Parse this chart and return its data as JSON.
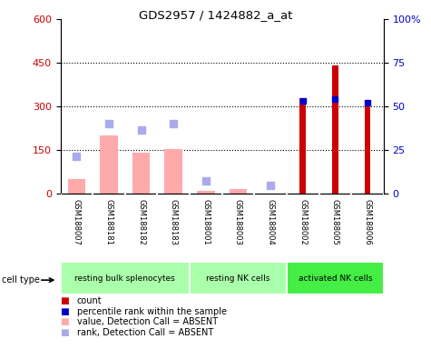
{
  "title": "GDS2957 / 1424882_a_at",
  "samples": [
    "GSM188007",
    "GSM188181",
    "GSM188182",
    "GSM188183",
    "GSM188001",
    "GSM188003",
    "GSM188004",
    "GSM188002",
    "GSM188005",
    "GSM188006"
  ],
  "cell_types": [
    {
      "label": "resting bulk splenocytes",
      "start": 0,
      "end": 4,
      "color": "#aaffaa"
    },
    {
      "label": "resting NK cells",
      "start": 4,
      "end": 7,
      "color": "#aaffaa"
    },
    {
      "label": "activated NK cells",
      "start": 7,
      "end": 10,
      "color": "#44ee44"
    }
  ],
  "count_values": [
    0,
    0,
    0,
    0,
    0,
    0,
    0,
    330,
    440,
    315
  ],
  "percentile_values_left": [
    0,
    0,
    0,
    0,
    0,
    0,
    0,
    320,
    325,
    312
  ],
  "absent_value_values": [
    50,
    200,
    140,
    155,
    10,
    15,
    0,
    0,
    0,
    0
  ],
  "absent_rank_values_left": [
    130,
    240,
    220,
    240,
    45,
    0,
    30,
    0,
    0,
    0
  ],
  "count_color": "#cc0000",
  "percentile_color": "#0000cc",
  "absent_value_color": "#ffaaaa",
  "absent_rank_color": "#aaaaee",
  "ylim_left": [
    0,
    600
  ],
  "ylim_right": [
    0,
    100
  ],
  "yticks_left": [
    0,
    150,
    300,
    450,
    600
  ],
  "yticks_right": [
    0,
    25,
    50,
    75,
    100
  ],
  "ytick_labels_right": [
    "0",
    "25",
    "50",
    "75",
    "100%"
  ],
  "background_color": "#ffffff",
  "label_bg": "#cccccc",
  "legend_items": [
    {
      "label": "count",
      "color": "#cc0000"
    },
    {
      "label": "percentile rank within the sample",
      "color": "#0000cc"
    },
    {
      "label": "value, Detection Call = ABSENT",
      "color": "#ffaaaa"
    },
    {
      "label": "rank, Detection Call = ABSENT",
      "color": "#aaaaee"
    }
  ]
}
